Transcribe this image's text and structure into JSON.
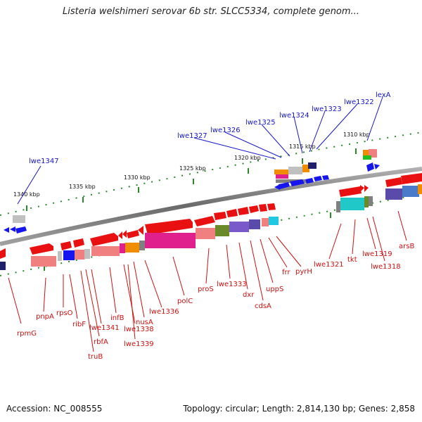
{
  "title": "Listeria welshimeri serovar 6b str. SLCC5334, complete genom...",
  "footer": {
    "accession": "Accession: NC_008555",
    "summary": "Topology: circular; Length: 2,814,130 bp; Genes: 2,858"
  },
  "colors": {
    "backbone": "#808080",
    "forward_label": "#1515c8",
    "reverse_label": "#d01010",
    "tick": "#2a8a2a"
  },
  "scale_labels": [
    "1340 kbp",
    "1335 kbp",
    "1330 kbp",
    "1325 kbp",
    "1320 kbp",
    "1315 kbp",
    "1310 kbp"
  ],
  "forward_genes": [
    "lwe1347",
    "lwe1327",
    "lwe1326",
    "lwe1325",
    "lwe1324",
    "lwe1323",
    "lwe1322",
    "lexA"
  ],
  "reverse_genes": [
    "rpmG",
    "pnpA",
    "rpsO",
    "ribF",
    "truB",
    "rbfA",
    "lwe1341",
    "infB",
    "lwe1338",
    "lwe1339",
    "nusA",
    "lwe1336",
    "polC",
    "proS",
    "lwe1333",
    "dxr",
    "cdsA",
    "uppS",
    "frr",
    "pyrH",
    "lwe1321",
    "tkt",
    "lwe1319",
    "lwe1318",
    "arsB"
  ]
}
